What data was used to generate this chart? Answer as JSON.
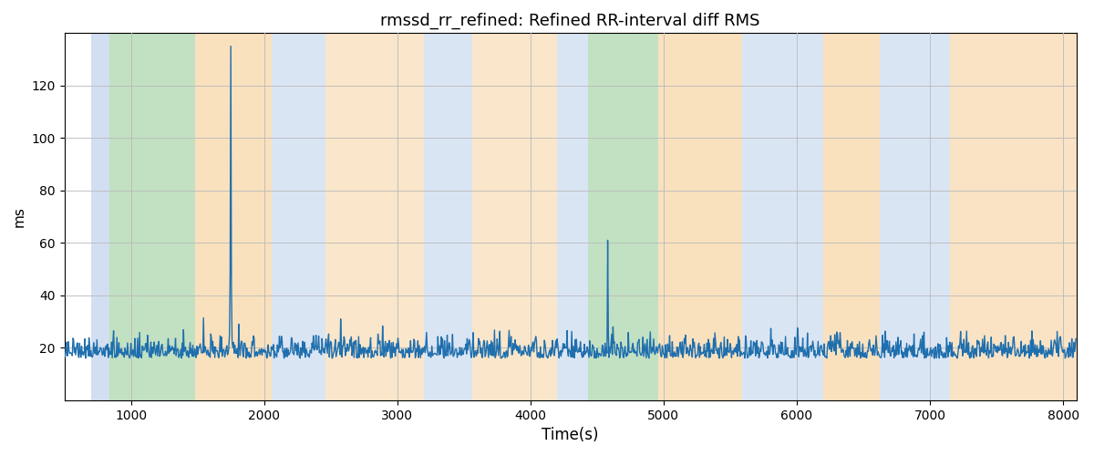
{
  "title": "rmssd_rr_refined: Refined RR-interval diff RMS",
  "xlabel": "Time(s)",
  "ylabel": "ms",
  "xlim": [
    500,
    8100
  ],
  "ylim": [
    0,
    140
  ],
  "yticks": [
    20,
    40,
    60,
    80,
    100,
    120
  ],
  "xticks": [
    1000,
    2000,
    3000,
    4000,
    5000,
    6000,
    7000,
    8000
  ],
  "line_color": "#1f6fae",
  "line_width": 1.0,
  "bands": [
    {
      "xmin": 700,
      "xmax": 840,
      "color": "#aec6e8",
      "alpha": 0.55
    },
    {
      "xmin": 840,
      "xmax": 1480,
      "color": "#90c990",
      "alpha": 0.55
    },
    {
      "xmin": 1480,
      "xmax": 2060,
      "color": "#f5c98a",
      "alpha": 0.55
    },
    {
      "xmin": 2060,
      "xmax": 2460,
      "color": "#aec6e8",
      "alpha": 0.45
    },
    {
      "xmin": 2460,
      "xmax": 3200,
      "color": "#f5c98a",
      "alpha": 0.45
    },
    {
      "xmin": 3200,
      "xmax": 3560,
      "color": "#aec6e8",
      "alpha": 0.45
    },
    {
      "xmin": 3560,
      "xmax": 4200,
      "color": "#f5c98a",
      "alpha": 0.45
    },
    {
      "xmin": 4200,
      "xmax": 4430,
      "color": "#aec6e8",
      "alpha": 0.45
    },
    {
      "xmin": 4430,
      "xmax": 4960,
      "color": "#90c990",
      "alpha": 0.55
    },
    {
      "xmin": 4960,
      "xmax": 5590,
      "color": "#f5c98a",
      "alpha": 0.55
    },
    {
      "xmin": 5590,
      "xmax": 6200,
      "color": "#aec6e8",
      "alpha": 0.45
    },
    {
      "xmin": 6200,
      "xmax": 6620,
      "color": "#f5c98a",
      "alpha": 0.55
    },
    {
      "xmin": 6620,
      "xmax": 7150,
      "color": "#aec6e8",
      "alpha": 0.45
    },
    {
      "xmin": 7150,
      "xmax": 8100,
      "color": "#f5c98a",
      "alpha": 0.5
    }
  ],
  "grid_color": "#bbbbbb",
  "grid_alpha": 0.9,
  "seed": 42,
  "t_start": 500,
  "t_end": 8100,
  "dt": 5,
  "noise_base": 16,
  "noise_std": 4.0
}
